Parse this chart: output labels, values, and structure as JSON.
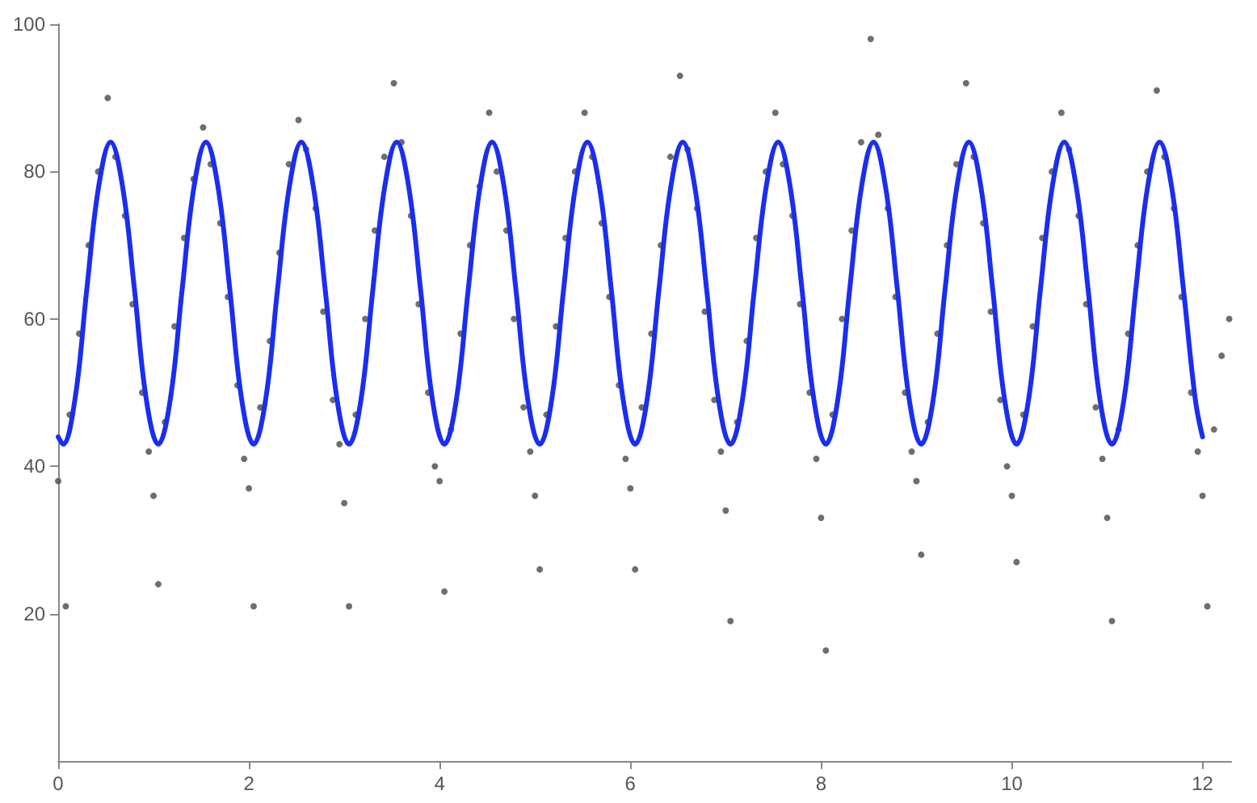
{
  "chart_data": {
    "type": "scatter",
    "xlim": [
      0,
      12.3
    ],
    "ylim": [
      0,
      100
    ],
    "xticks": [
      0,
      2,
      4,
      6,
      8,
      10,
      12
    ],
    "yticks": [
      20,
      40,
      60,
      80,
      100
    ],
    "grid": false,
    "series": [
      {
        "type": "scatter",
        "color": "#555555",
        "marker": "circle",
        "x": [
          0.0,
          0.08,
          0.12,
          0.22,
          0.32,
          0.42,
          0.52,
          0.6,
          0.7,
          0.78,
          0.88,
          0.95,
          1.0,
          1.05,
          1.12,
          1.22,
          1.32,
          1.42,
          1.52,
          1.6,
          1.7,
          1.78,
          1.88,
          1.95,
          2.0,
          2.05,
          2.12,
          2.22,
          2.32,
          2.42,
          2.52,
          2.6,
          2.7,
          2.78,
          2.88,
          2.95,
          3.0,
          3.05,
          3.12,
          3.22,
          3.32,
          3.42,
          3.52,
          3.6,
          3.7,
          3.78,
          3.88,
          3.95,
          4.0,
          4.05,
          4.12,
          4.22,
          4.32,
          4.42,
          4.52,
          4.6,
          4.7,
          4.78,
          4.88,
          4.95,
          5.0,
          5.05,
          5.12,
          5.22,
          5.32,
          5.42,
          5.52,
          5.6,
          5.7,
          5.78,
          5.88,
          5.95,
          6.0,
          6.05,
          6.12,
          6.22,
          6.32,
          6.42,
          6.52,
          6.6,
          6.7,
          6.78,
          6.88,
          6.95,
          7.0,
          7.05,
          7.12,
          7.22,
          7.32,
          7.42,
          7.52,
          7.6,
          7.7,
          7.78,
          7.88,
          7.95,
          8.0,
          8.05,
          8.12,
          8.22,
          8.32,
          8.42,
          8.52,
          8.6,
          8.7,
          8.78,
          8.88,
          8.95,
          9.0,
          9.05,
          9.12,
          9.22,
          9.32,
          9.42,
          9.52,
          9.6,
          9.7,
          9.78,
          9.88,
          9.95,
          10.0,
          10.05,
          10.12,
          10.22,
          10.32,
          10.42,
          10.52,
          10.6,
          10.7,
          10.78,
          10.88,
          10.95,
          11.0,
          11.05,
          11.12,
          11.22,
          11.32,
          11.42,
          11.52,
          11.6,
          11.7,
          11.78,
          11.88,
          11.95,
          12.0,
          12.05,
          12.12,
          12.2,
          12.28
        ],
        "values": [
          38,
          21,
          47,
          58,
          70,
          80,
          90,
          82,
          74,
          62,
          50,
          42,
          36,
          24,
          46,
          59,
          71,
          79,
          86,
          81,
          73,
          63,
          51,
          41,
          37,
          21,
          48,
          57,
          69,
          81,
          87,
          83,
          75,
          61,
          49,
          43,
          35,
          21,
          47,
          60,
          72,
          82,
          92,
          84,
          74,
          62,
          50,
          40,
          38,
          23,
          45,
          58,
          70,
          78,
          88,
          80,
          72,
          60,
          48,
          42,
          36,
          26,
          47,
          59,
          71,
          80,
          88,
          82,
          73,
          63,
          51,
          41,
          37,
          26,
          48,
          58,
          70,
          82,
          93,
          83,
          75,
          61,
          49,
          42,
          34,
          19,
          46,
          57,
          71,
          80,
          88,
          81,
          74,
          62,
          50,
          41,
          33,
          15,
          47,
          60,
          72,
          84,
          98,
          85,
          75,
          63,
          50,
          42,
          38,
          28,
          46,
          58,
          70,
          81,
          92,
          82,
          73,
          61,
          49,
          40,
          36,
          27,
          47,
          59,
          71,
          80,
          88,
          83,
          74,
          62,
          48,
          41,
          33,
          19,
          45,
          58,
          70,
          80,
          91,
          82,
          75,
          63,
          50,
          42,
          36,
          21,
          45,
          55,
          60
        ]
      },
      {
        "type": "line",
        "color": "#1a2ef0",
        "marker": "none",
        "line_style": "solid",
        "x": [
          0,
          0.05,
          0.175,
          0.3,
          0.425,
          0.55,
          0.675,
          0.8,
          0.925,
          1.05,
          1.175,
          1.3,
          1.425,
          1.55,
          1.675,
          1.8,
          1.925,
          2.05,
          2.175,
          2.3,
          2.425,
          2.55,
          2.675,
          2.8,
          2.925,
          3.05,
          3.175,
          3.3,
          3.425,
          3.55,
          3.675,
          3.8,
          3.925,
          4.05,
          4.175,
          4.3,
          4.425,
          4.55,
          4.675,
          4.8,
          4.925,
          5.05,
          5.175,
          5.3,
          5.425,
          5.55,
          5.675,
          5.8,
          5.925,
          6.05,
          6.175,
          6.3,
          6.425,
          6.55,
          6.675,
          6.8,
          6.925,
          7.05,
          7.175,
          7.3,
          7.425,
          7.55,
          7.675,
          7.8,
          7.925,
          8.05,
          8.175,
          8.3,
          8.425,
          8.55,
          8.675,
          8.8,
          8.925,
          9.05,
          9.175,
          9.3,
          9.425,
          9.55,
          9.675,
          9.8,
          9.925,
          10.05,
          10.175,
          10.3,
          10.425,
          10.55,
          10.675,
          10.8,
          10.925,
          11.05,
          11.175,
          11.3,
          11.425,
          11.55,
          11.675,
          11.8,
          11.925,
          12.0
        ],
        "values": [
          44,
          43,
          49,
          64,
          78,
          84,
          78,
          64,
          49,
          43,
          49,
          64,
          78,
          84,
          78,
          64,
          49,
          43,
          49,
          64,
          78,
          84,
          78,
          64,
          49,
          43,
          49,
          64,
          78,
          84,
          78,
          64,
          49,
          43,
          49,
          64,
          78,
          84,
          78,
          64,
          49,
          43,
          49,
          64,
          78,
          84,
          78,
          64,
          49,
          43,
          49,
          64,
          78,
          84,
          78,
          64,
          49,
          43,
          49,
          64,
          78,
          84,
          78,
          64,
          49,
          43,
          49,
          64,
          78,
          84,
          78,
          64,
          49,
          43,
          49,
          64,
          78,
          84,
          78,
          64,
          49,
          43,
          49,
          64,
          78,
          84,
          78,
          64,
          49,
          43,
          49,
          64,
          78,
          84,
          78,
          64,
          49,
          44
        ]
      }
    ]
  }
}
